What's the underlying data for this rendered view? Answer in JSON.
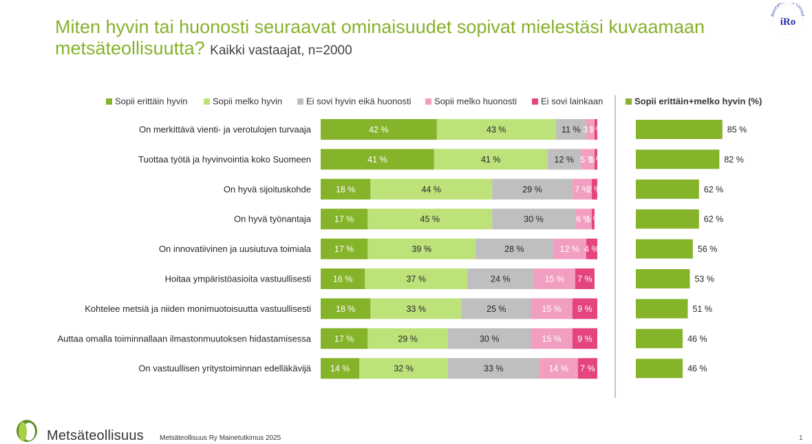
{
  "header": {
    "title": "Miten hyvin tai huonosti seuraavat ominaisuudet sopivat mielestäsi kuvaamaan metsäteollisuutta?",
    "subtitle": "Kaikki vastaajat, n=2000"
  },
  "logos": {
    "iro_text": "iRo",
    "iro_arc": "Research and consulting"
  },
  "footer": {
    "brand": "Metsäteollisuus",
    "note": "Metsäteollisuus Ry Mainetutkimus 2025",
    "page": "1"
  },
  "colors": {
    "Sopii erittäin hyvin": "#85b32a",
    "Sopii melko hyvin": "#bde27a",
    "Ei sovi hyvin eikä huonosti": "#bfbfbf",
    "Sopii melko huonosti": "#f29ec0",
    "Ei sovi lainkaan": "#e4457f",
    "title": "#86b22a"
  },
  "chart_data": [
    {
      "type": "bar",
      "orientation": "horizontal",
      "stacked": true,
      "legend": [
        "Sopii erittäin hyvin",
        "Sopii melko hyvin",
        "Ei sovi hyvin eikä huonosti",
        "Sopii melko huonosti",
        "Ei sovi lainkaan"
      ],
      "categories": [
        "On merkittävä vienti- ja verotulojen turvaaja",
        "Tuottaa työtä ja hyvinvointia koko Suomeen",
        "On hyvä sijoituskohde",
        "On hyvä työnantaja",
        "On innovatiivinen ja uusiutuva toimiala",
        "Hoitaa ympäristöasioita vastuullisesti",
        "Kohtelee metsiä ja niiden monimuotoisuutta vastuullisesti",
        "Auttaa omalla toiminnallaan ilmastonmuutoksen hidastamisessa",
        "On vastuullisen yritystoiminnan edelläkävijä"
      ],
      "series": [
        {
          "name": "Sopii erittäin hyvin",
          "values": [
            42,
            41,
            18,
            17,
            17,
            16,
            18,
            17,
            14
          ]
        },
        {
          "name": "Sopii melko hyvin",
          "values": [
            43,
            41,
            44,
            45,
            39,
            37,
            33,
            29,
            32
          ]
        },
        {
          "name": "Ei sovi hyvin eikä huonosti",
          "values": [
            11,
            12,
            29,
            30,
            28,
            24,
            25,
            30,
            33
          ]
        },
        {
          "name": "Sopii melko huonosti",
          "values": [
            3,
            5,
            7,
            6,
            12,
            15,
            15,
            15,
            14
          ]
        },
        {
          "name": "Ei sovi lainkaan",
          "values": [
            1,
            1,
            2,
            1,
            4,
            7,
            9,
            9,
            7
          ]
        }
      ],
      "value_suffix": " %",
      "xlim": [
        0,
        100
      ]
    },
    {
      "type": "bar",
      "orientation": "horizontal",
      "series": [
        {
          "name": "Sopii erittäin+melko hyvin (%)",
          "values": [
            85,
            82,
            62,
            62,
            56,
            53,
            51,
            46,
            46
          ]
        }
      ],
      "value_suffix": " %",
      "xlim": [
        0,
        100
      ]
    }
  ]
}
